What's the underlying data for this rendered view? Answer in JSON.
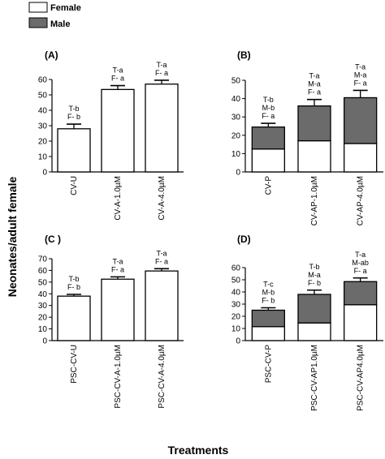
{
  "legend": {
    "items": [
      {
        "label": "Female",
        "color": "#ffffff"
      },
      {
        "label": "Male",
        "color": "#6b6b6b"
      }
    ]
  },
  "axis_labels": {
    "y": "Neonates/adult female",
    "x": "Treatments"
  },
  "chart_data": [
    {
      "type": "bar",
      "panel": "(A)",
      "categories": [
        "CV-U",
        "CV-A-1.0µM",
        "CV-A-4.0µM"
      ],
      "series": [
        {
          "name": "Female",
          "values": [
            28,
            53.5,
            57
          ],
          "errors": [
            3,
            2.5,
            2.5
          ]
        }
      ],
      "annotations": [
        [
          "T-b",
          "F- b"
        ],
        [
          "T-a",
          "F- a"
        ],
        [
          "T-a",
          "F- a"
        ]
      ],
      "ylim": [
        0,
        60
      ],
      "yticks": [
        0,
        10,
        20,
        30,
        40,
        50,
        60
      ],
      "stacked": false
    },
    {
      "type": "bar",
      "panel": "(B)",
      "categories": [
        "CV-P",
        "CV-AP-1.0µM",
        "CV-AP-4.0µM"
      ],
      "series": [
        {
          "name": "Female",
          "values": [
            12.5,
            17,
            15.5
          ],
          "errors": [
            2.5,
            3,
            3
          ]
        },
        {
          "name": "Male",
          "values": [
            12,
            19,
            25
          ],
          "errors": [
            2,
            3.5,
            4
          ]
        }
      ],
      "annotations": [
        [
          "T-b",
          "M-b",
          "F- a"
        ],
        [
          "T-a",
          "M-a",
          "F- a"
        ],
        [
          "T-a",
          "M-a",
          "F- a"
        ]
      ],
      "ylim": [
        0,
        50
      ],
      "yticks": [
        0,
        10,
        20,
        30,
        40,
        50
      ],
      "stacked": true
    },
    {
      "type": "bar",
      "panel": "(C )",
      "categories": [
        "PSC-CV-U",
        "PSC-CV-A-1.0µM",
        "PSC-CV-A-4.0µM"
      ],
      "series": [
        {
          "name": "Female",
          "values": [
            38,
            52.5,
            59.5
          ],
          "errors": [
            1.5,
            2,
            2
          ]
        }
      ],
      "annotations": [
        [
          "T-b",
          "F- b"
        ],
        [
          "T-a",
          "F- a"
        ],
        [
          "T-a",
          "F- a"
        ]
      ],
      "ylim": [
        0,
        70
      ],
      "yticks": [
        0,
        10,
        20,
        30,
        40,
        50,
        60,
        70
      ],
      "stacked": false
    },
    {
      "type": "bar",
      "panel": "(D)",
      "categories": [
        "PSC-CV-P",
        "PSC-CV-AP1.0µM",
        "PSC-CV-AP4.0µM"
      ],
      "series": [
        {
          "name": "Female",
          "values": [
            11.5,
            14.5,
            29.5
          ],
          "errors": [
            2.5,
            2.5,
            2
          ]
        },
        {
          "name": "Male",
          "values": [
            13.5,
            23.5,
            19
          ],
          "errors": [
            2,
            3.5,
            3
          ]
        }
      ],
      "annotations": [
        [
          "T-c",
          "M-b",
          "F- b"
        ],
        [
          "T-b",
          "M-a",
          "F- b"
        ],
        [
          "T-a",
          "M-ab",
          "F- a"
        ]
      ],
      "ylim": [
        0,
        60
      ],
      "yticks": [
        0,
        10,
        20,
        30,
        40,
        50,
        60
      ],
      "stacked": true
    }
  ]
}
